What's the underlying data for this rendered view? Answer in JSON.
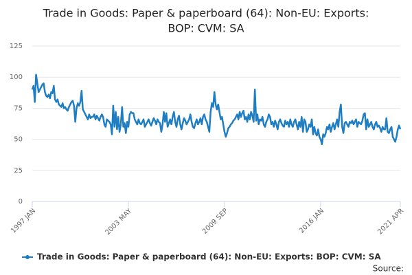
{
  "chart_data": {
    "type": "line",
    "title_lines": [
      "Trade in Goods: Paper & paperboard (64): Non-EU: Exports:",
      "BOP: CVM: SA"
    ],
    "source_label": "Source:",
    "categories": [
      "1997 JAN",
      null,
      null,
      null,
      null,
      null,
      null,
      null,
      null,
      null,
      null,
      null,
      null,
      null,
      null,
      null,
      null,
      null,
      null,
      null,
      null,
      null,
      null,
      null,
      null,
      null,
      null,
      null,
      null,
      null,
      null,
      null,
      null,
      null,
      null,
      null,
      null,
      null,
      null,
      null,
      null,
      null,
      null,
      null,
      null,
      null,
      null,
      null,
      null,
      null,
      null,
      null,
      null,
      null,
      null,
      null,
      null,
      null,
      null,
      null,
      null,
      null,
      null,
      null,
      null,
      null,
      null,
      null,
      null,
      null,
      null,
      null,
      null,
      null,
      null,
      null,
      "2003 MAY",
      null,
      null,
      null,
      null,
      null,
      null,
      null,
      null,
      null,
      null,
      null,
      null,
      null,
      null,
      null,
      null,
      null,
      null,
      null,
      null,
      null,
      null,
      null,
      null,
      null,
      null,
      null,
      null,
      null,
      null,
      null,
      null,
      null,
      null,
      null,
      null,
      null,
      null,
      null,
      null,
      null,
      null,
      null,
      null,
      null,
      null,
      null,
      null,
      null,
      null,
      null,
      null,
      null,
      null,
      null,
      null,
      null,
      null,
      null,
      null,
      null,
      null,
      null,
      null,
      null,
      null,
      null,
      null,
      null,
      null,
      null,
      null,
      null,
      null,
      null,
      "2009 SEP",
      null,
      null,
      null,
      null,
      null,
      null,
      null,
      null,
      null,
      null,
      null,
      null,
      null,
      null,
      null,
      null,
      null,
      null,
      null,
      null,
      null,
      null,
      null,
      null,
      null,
      null,
      null,
      null,
      null,
      null,
      null,
      null,
      null,
      null,
      null,
      null,
      null,
      null,
      null,
      null,
      null,
      null,
      null,
      null,
      null,
      null,
      null,
      null,
      null,
      null,
      null,
      null,
      null,
      null,
      null,
      null,
      null,
      null,
      null,
      null,
      null,
      null,
      null,
      null,
      null,
      null,
      null,
      null,
      null,
      null,
      null,
      null,
      null,
      null,
      null,
      "2016 JAN",
      null,
      null,
      null,
      null,
      null,
      null,
      null,
      null,
      null,
      null,
      null,
      null,
      null,
      null,
      null,
      null,
      null,
      null,
      null,
      null,
      null,
      null,
      null,
      null,
      null,
      null,
      null,
      null,
      null,
      null,
      null,
      null,
      null,
      null,
      null,
      null,
      null,
      null,
      null,
      null,
      null,
      null,
      null,
      null,
      null,
      null,
      null,
      null,
      null,
      null,
      null,
      null,
      null,
      null,
      null,
      null,
      null,
      null,
      null,
      null,
      null,
      null,
      "2021 APR"
    ],
    "series": [
      {
        "name": "Trade in Goods: Paper & paperboard (64): Non-EU: Exports: BOP: CVM: SA",
        "color": "#1f7ec2",
        "values": [
          90,
          93,
          80,
          102,
          95,
          88,
          90,
          92,
          94,
          95,
          88,
          85,
          84,
          86,
          83,
          88,
          87,
          93,
          82,
          80,
          82,
          78,
          77,
          76,
          79,
          75,
          76,
          74,
          73,
          76,
          78,
          80,
          81,
          77,
          64,
          75,
          79,
          77,
          80,
          89,
          74,
          72,
          70,
          68,
          66,
          70,
          67,
          68,
          68,
          70,
          66,
          69,
          67,
          65,
          68,
          70,
          68,
          62,
          60,
          66,
          65,
          64,
          62,
          54,
          77,
          60,
          72,
          58,
          68,
          56,
          62,
          76,
          60,
          63,
          55,
          64,
          60,
          70,
          72,
          71,
          71,
          66,
          64,
          62,
          66,
          63,
          62,
          64,
          66,
          60,
          62,
          64,
          66,
          63,
          61,
          64,
          67,
          65,
          62,
          66,
          64,
          63,
          56,
          62,
          72,
          64,
          71,
          60,
          63,
          66,
          62,
          68,
          72,
          64,
          60,
          66,
          69,
          62,
          58,
          63,
          67,
          65,
          62,
          64,
          66,
          70,
          64,
          60,
          59,
          63,
          66,
          62,
          64,
          67,
          62,
          68,
          70,
          66,
          64,
          60,
          56,
          72,
          79,
          76,
          88,
          78,
          74,
          78,
          72,
          66,
          68,
          62,
          56,
          52,
          55,
          59,
          60,
          62,
          63,
          65,
          66,
          68,
          70,
          66,
          72,
          68,
          71,
          73,
          66,
          68,
          64,
          70,
          66,
          72,
          69,
          64,
          90,
          65,
          70,
          62,
          66,
          65,
          68,
          62,
          60,
          64,
          66,
          70,
          68,
          62,
          64,
          60,
          65,
          62,
          58,
          64,
          66,
          63,
          61,
          60,
          65,
          62,
          64,
          60,
          66,
          62,
          60,
          64,
          66,
          62,
          58,
          64,
          60,
          68,
          56,
          66,
          64,
          56,
          58,
          62,
          60,
          66,
          54,
          60,
          55,
          53,
          58,
          52,
          50,
          46,
          54,
          52,
          55,
          60,
          58,
          62,
          56,
          60,
          63,
          58,
          62,
          66,
          60,
          72,
          78,
          60,
          55,
          63,
          64,
          62,
          60,
          64,
          63,
          65,
          62,
          64,
          66,
          60,
          64,
          63,
          62,
          65,
          70,
          71,
          58,
          66,
          60,
          62,
          64,
          60,
          58,
          62,
          64,
          60,
          61,
          59,
          56,
          60,
          58,
          58,
          67,
          56,
          55,
          58,
          60,
          52,
          50,
          48,
          52,
          58,
          61,
          58
        ]
      }
    ],
    "ylim": [
      0,
      125
    ],
    "yticks": [
      0,
      25,
      50,
      75,
      100,
      125
    ],
    "grid": true
  }
}
